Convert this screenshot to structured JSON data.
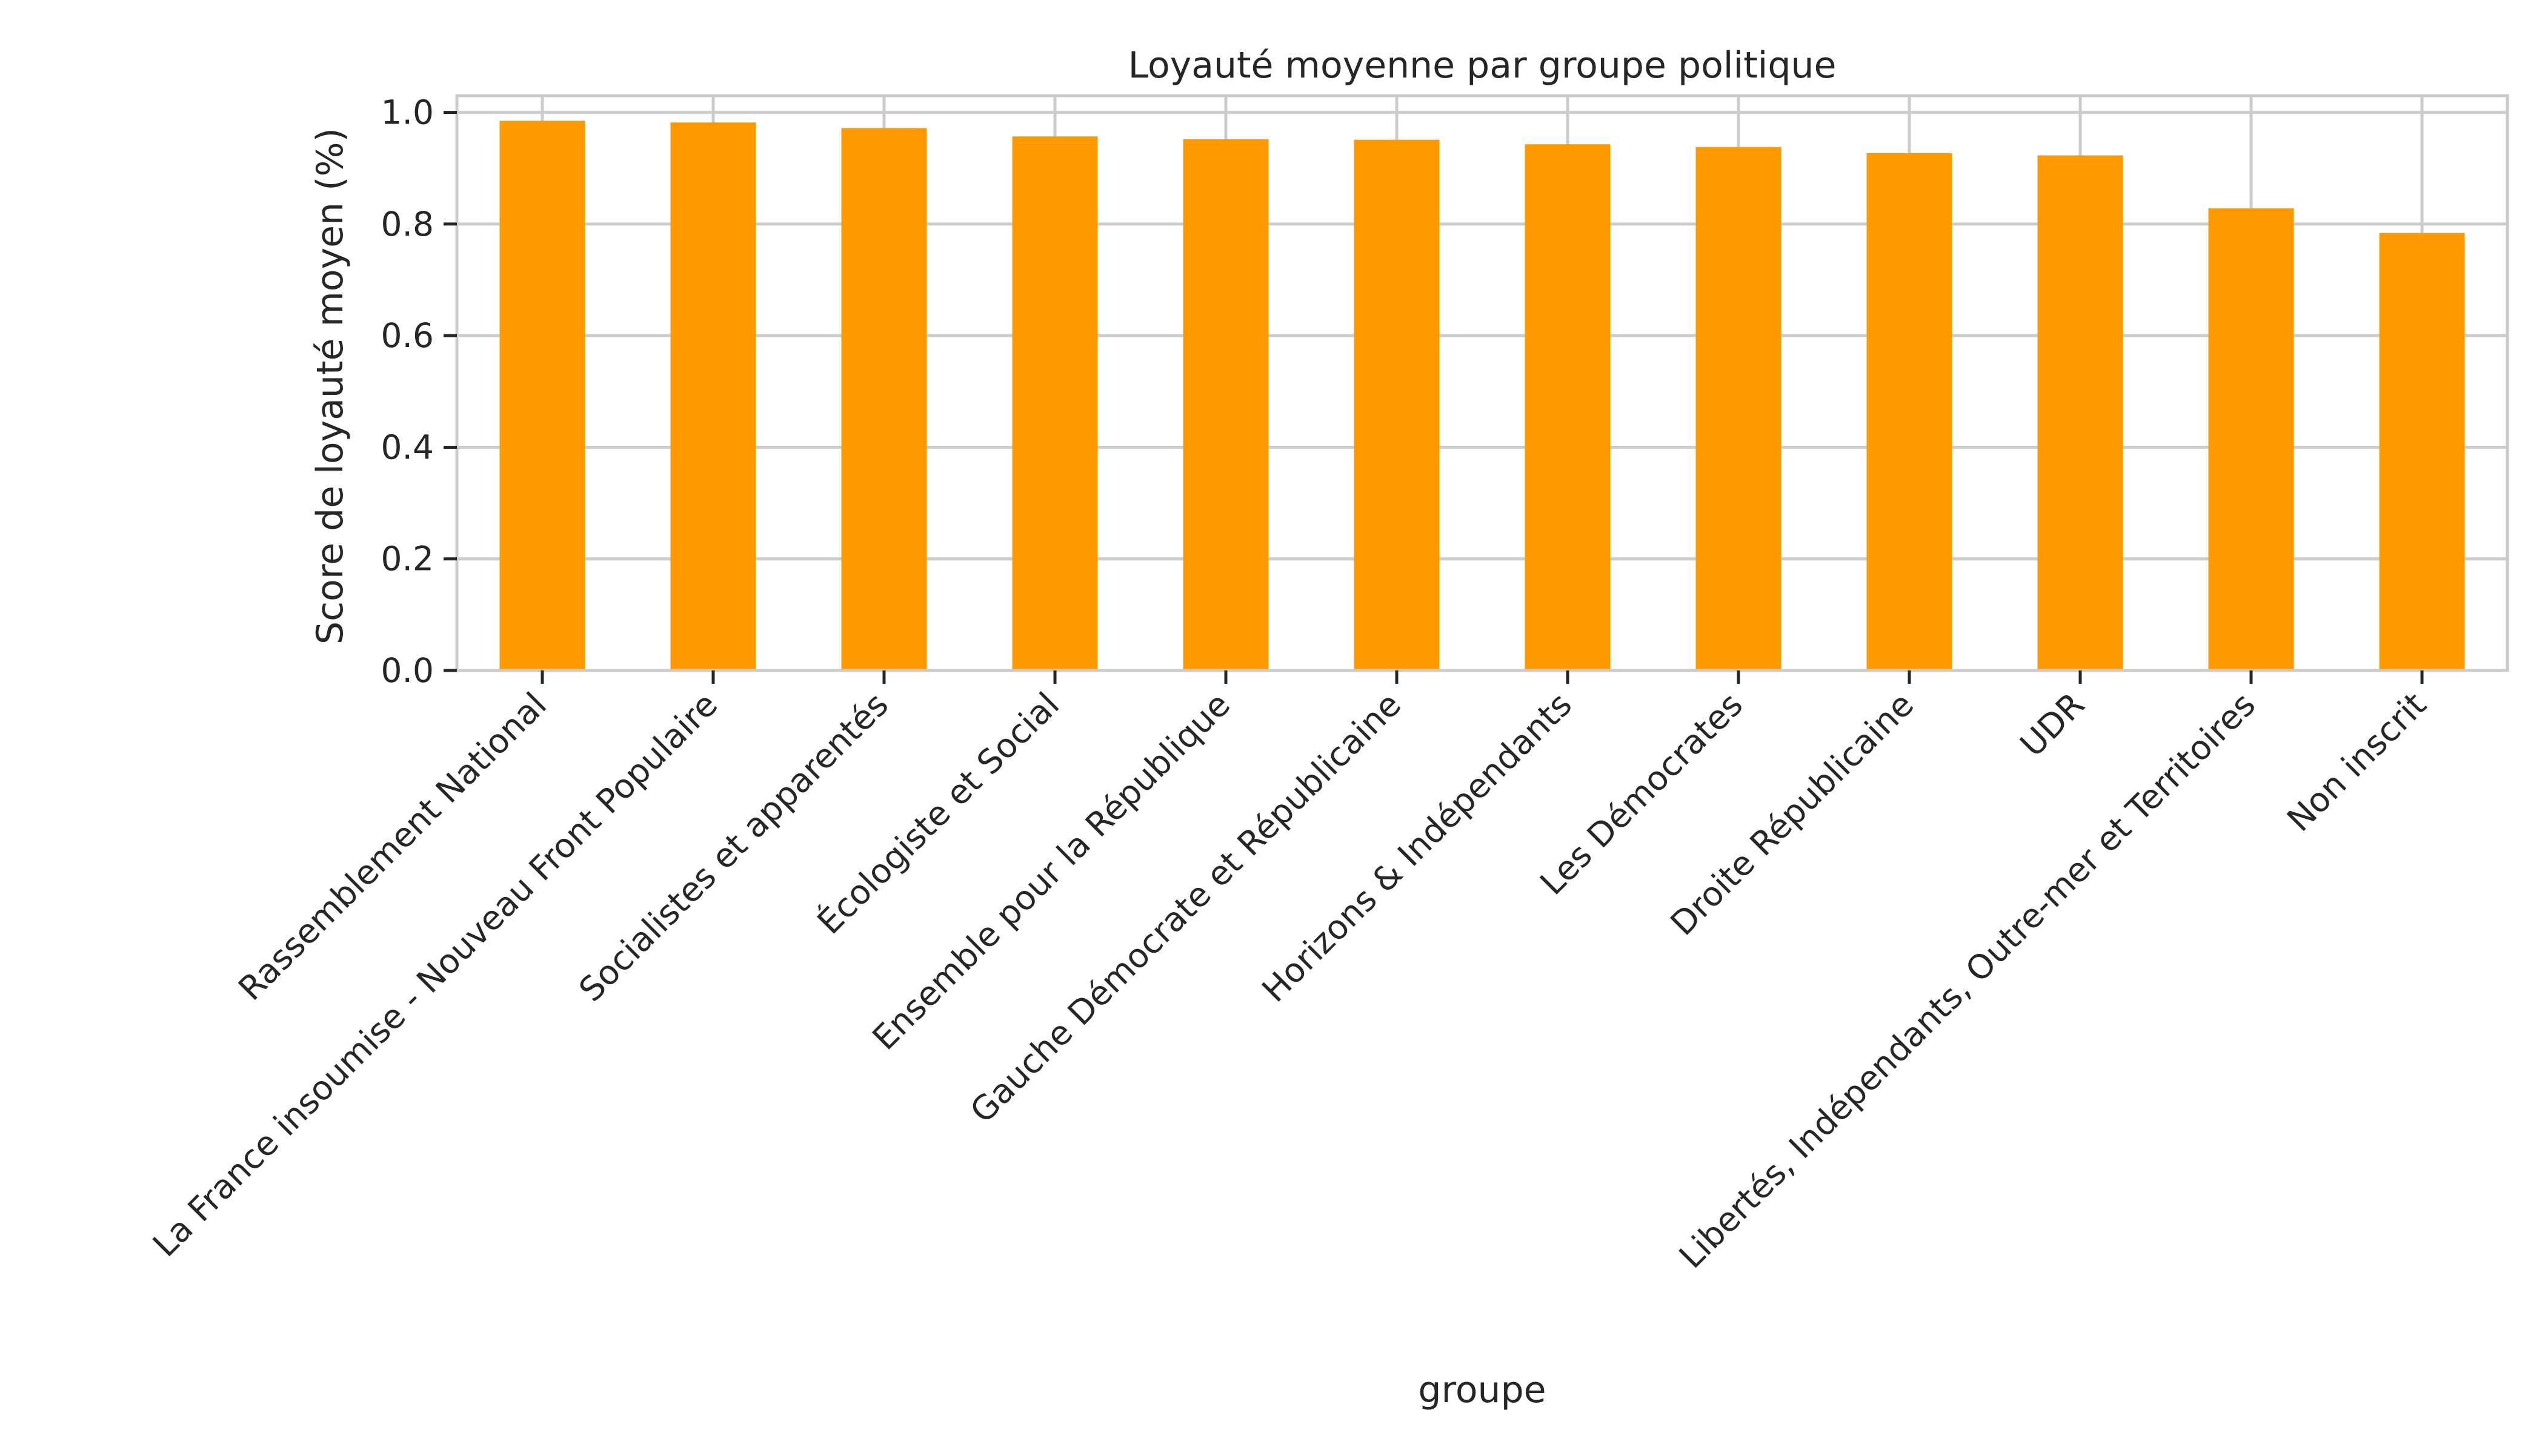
{
  "chart_data": {
    "type": "bar",
    "title": "Loyauté moyenne par groupe politique",
    "xlabel": "groupe",
    "ylabel": "Score de loyauté moyen (%)",
    "ylim": [
      0,
      1.03
    ],
    "yticks": [
      0.0,
      0.2,
      0.4,
      0.6,
      0.8,
      1.0
    ],
    "ytick_labels": [
      "0.0",
      "0.2",
      "0.4",
      "0.6",
      "0.8",
      "1.0"
    ],
    "grid": true,
    "bar_color": "#ff9900",
    "categories": [
      "Rassemblement National",
      "La France insoumise - Nouveau Front Populaire",
      "Socialistes et apparentés",
      "Écologiste et Social",
      "Ensemble pour la République",
      "Gauche Démocrate et Républicaine",
      "Horizons & Indépendants",
      "Les Démocrates",
      "Droite Républicaine",
      "UDR",
      "Libertés, Indépendants, Outre-mer et Territoires",
      "Non inscrit"
    ],
    "values": [
      0.985,
      0.982,
      0.972,
      0.957,
      0.952,
      0.951,
      0.943,
      0.938,
      0.927,
      0.923,
      0.828,
      0.784
    ]
  }
}
